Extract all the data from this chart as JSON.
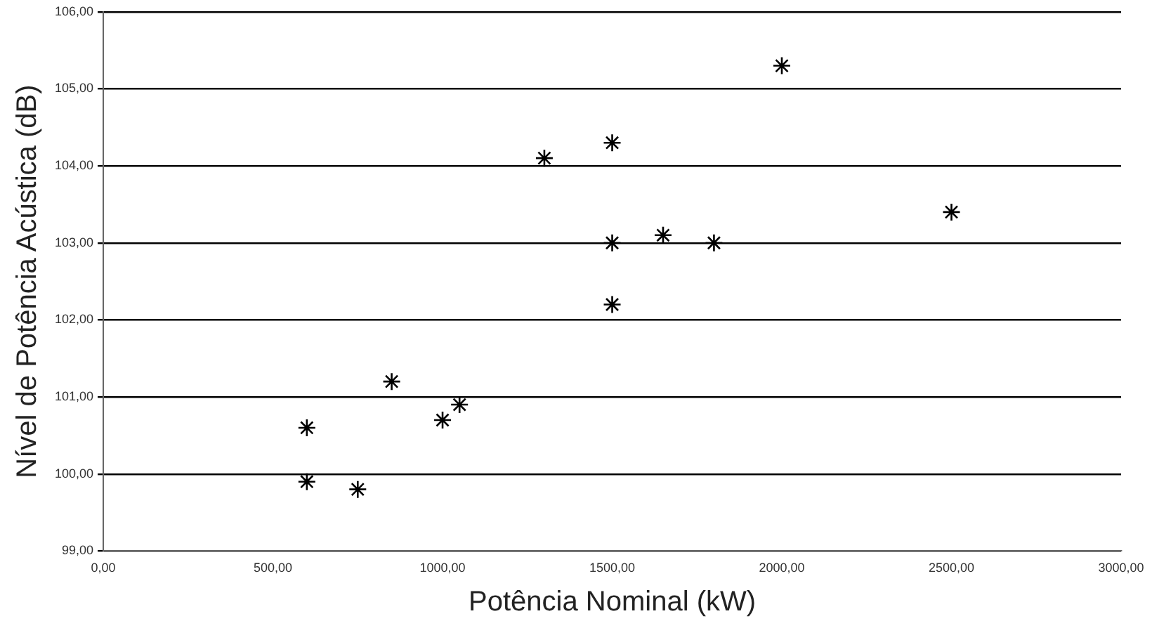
{
  "chart_data": {
    "type": "scatter",
    "xlabel": "Potência Nominal (kW)",
    "ylabel": "Nível de Potência Acústica (dB)",
    "x": [
      600,
      600,
      750,
      850,
      1000,
      1050,
      1300,
      1500,
      1500,
      1500,
      1650,
      1800,
      2000,
      2500
    ],
    "series": [
      {
        "color": "#000000",
        "values": [
          100.6,
          99.9,
          99.8,
          101.2,
          100.7,
          100.9,
          104.1,
          104.3,
          103.0,
          102.2,
          103.1,
          103.0,
          105.3,
          103.4
        ]
      }
    ],
    "xlim": [
      0,
      3000
    ],
    "ylim": [
      99,
      106
    ],
    "xticks": [
      {
        "value": 0,
        "label": "0,00"
      },
      {
        "value": 500,
        "label": "500,00"
      },
      {
        "value": 1000,
        "label": "1000,00"
      },
      {
        "value": 1500,
        "label": "1500,00"
      },
      {
        "value": 2000,
        "label": "2000,00"
      },
      {
        "value": 2500,
        "label": "2500,00"
      },
      {
        "value": 3000,
        "label": "3000,00"
      }
    ],
    "yticks": [
      {
        "value": 99,
        "label": "99,00"
      },
      {
        "value": 100,
        "label": "100,00"
      },
      {
        "value": 101,
        "label": "101,00"
      },
      {
        "value": 102,
        "label": "102,00"
      },
      {
        "value": 103,
        "label": "103,00"
      },
      {
        "value": 104,
        "label": "104,00"
      },
      {
        "value": 105,
        "label": "105,00"
      },
      {
        "value": 106,
        "label": "106,00"
      }
    ],
    "grid": "y",
    "marker": "cross",
    "legend": false
  }
}
